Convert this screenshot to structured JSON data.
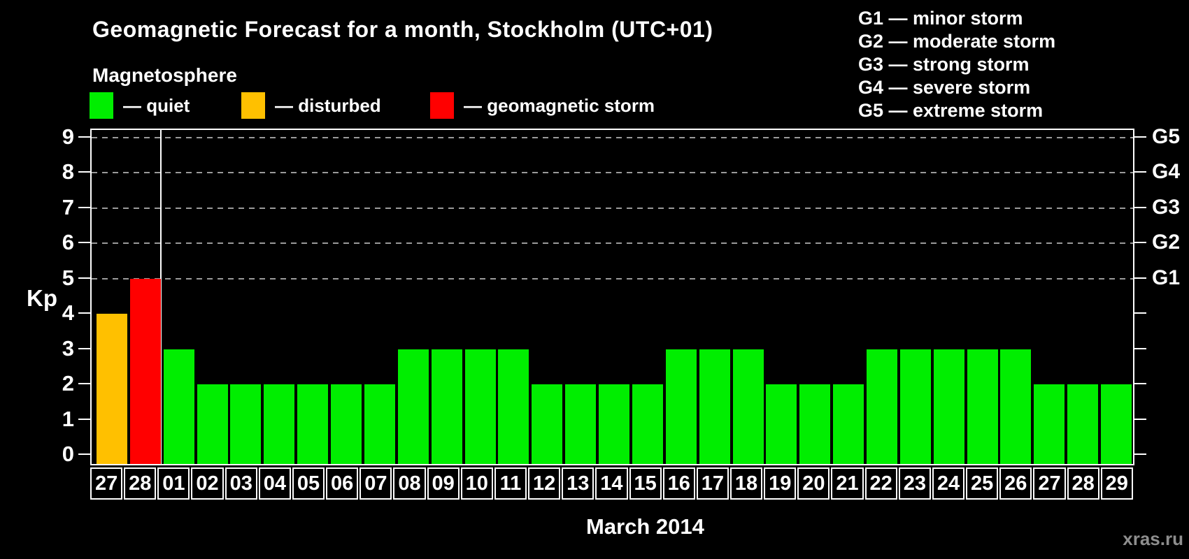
{
  "header": {
    "title": "Geomagnetic Forecast for a month, Stockholm (UTC+01)",
    "subtitle": "Magnetosphere"
  },
  "legend": {
    "items": [
      {
        "label": "— quiet",
        "status": "quiet"
      },
      {
        "label": "— disturbed",
        "status": "disturbed"
      },
      {
        "label": "— geomagnetic storm",
        "status": "storm"
      }
    ]
  },
  "g_legend": {
    "items": [
      "G1 — minor storm",
      "G2 — moderate storm",
      "G3 — strong storm",
      "G4 — severe storm",
      "G5 — extreme storm"
    ]
  },
  "colors": {
    "quiet": "#00ee00",
    "disturbed": "#ffc000",
    "storm": "#ff0000",
    "axis": "#ffffff",
    "grid": "#9a9a9a",
    "watermark": "#8e8e8e"
  },
  "watermark": "xras.ru",
  "chart_data": {
    "type": "bar",
    "title": "Geomagnetic Forecast for a month, Stockholm (UTC+01)",
    "xlabel": "March 2014",
    "ylabel": "Kp",
    "ylim": [
      0,
      9
    ],
    "y_ticks": [
      0,
      1,
      2,
      3,
      4,
      5,
      6,
      7,
      8,
      9
    ],
    "gridlines_at": [
      5,
      6,
      7,
      8,
      9
    ],
    "grid": "dashed horizontal lines at storm levels only",
    "legend_position": "top",
    "right_axis_labels": [
      {
        "label": "G1",
        "level": 5
      },
      {
        "label": "G2",
        "level": 6
      },
      {
        "label": "G3",
        "level": 7
      },
      {
        "label": "G4",
        "level": 8
      },
      {
        "label": "G5",
        "level": 9
      }
    ],
    "month_separator_after_index": 1,
    "categories": [
      "27",
      "28",
      "01",
      "02",
      "03",
      "04",
      "05",
      "06",
      "07",
      "08",
      "09",
      "10",
      "11",
      "12",
      "13",
      "14",
      "15",
      "16",
      "17",
      "18",
      "19",
      "20",
      "21",
      "22",
      "23",
      "24",
      "25",
      "26",
      "27",
      "28",
      "29"
    ],
    "series": [
      {
        "name": "Kp forecast",
        "values": [
          4,
          5,
          3,
          2,
          2,
          2,
          2,
          2,
          2,
          3,
          3,
          3,
          3,
          2,
          2,
          2,
          2,
          3,
          3,
          3,
          2,
          2,
          2,
          3,
          3,
          3,
          3,
          3,
          2,
          2,
          2
        ],
        "statuses": [
          "disturbed",
          "storm",
          "quiet",
          "quiet",
          "quiet",
          "quiet",
          "quiet",
          "quiet",
          "quiet",
          "quiet",
          "quiet",
          "quiet",
          "quiet",
          "quiet",
          "quiet",
          "quiet",
          "quiet",
          "quiet",
          "quiet",
          "quiet",
          "quiet",
          "quiet",
          "quiet",
          "quiet",
          "quiet",
          "quiet",
          "quiet",
          "quiet",
          "quiet",
          "quiet",
          "quiet"
        ]
      }
    ]
  }
}
